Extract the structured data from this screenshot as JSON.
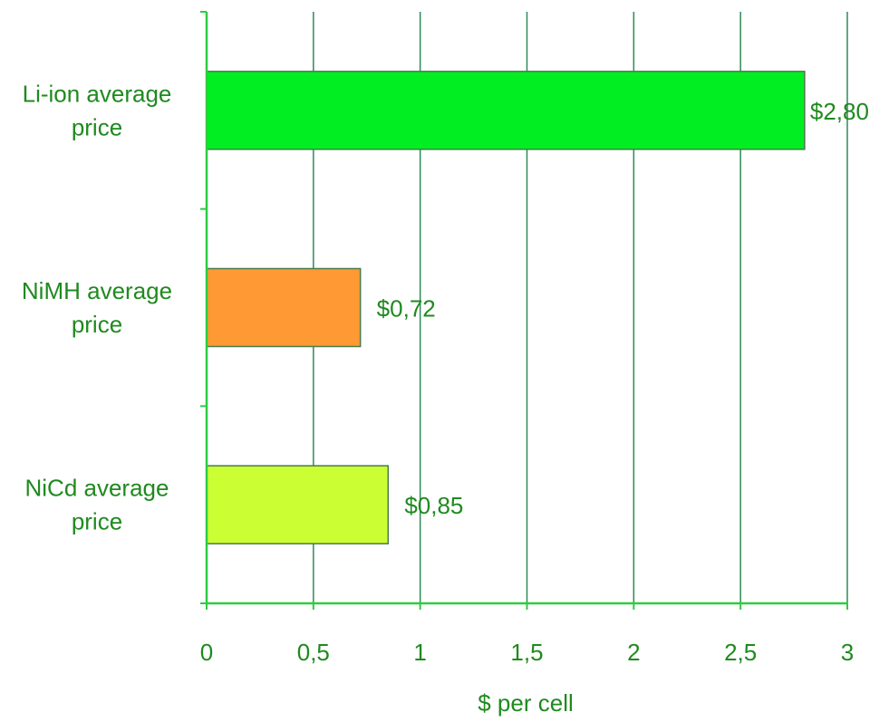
{
  "chart_data": {
    "type": "bar",
    "orientation": "horizontal",
    "title": "",
    "xlabel": "$ per cell",
    "ylabel": "",
    "xlim": [
      0,
      3
    ],
    "x_ticks": [
      "0",
      "0,5",
      "1",
      "1,5",
      "2",
      "2,5",
      "3"
    ],
    "x_tick_values": [
      0,
      0.5,
      1,
      1.5,
      2,
      2.5,
      3
    ],
    "grid": true,
    "legend": "none",
    "categories": [
      [
        "Li-ion average",
        "price"
      ],
      [
        "NiMH average",
        "price"
      ],
      [
        "NiCd average",
        "price"
      ]
    ],
    "values": [
      2.8,
      0.72,
      0.85
    ],
    "value_labels": [
      "$2,80",
      "$0,72",
      "$0,85"
    ],
    "colors": [
      "#00ee22",
      "#ff9933",
      "#ccff33"
    ],
    "text_color": "#1f8a1f",
    "grid_color": "#2e8b57",
    "axis_color": "#2ecc40",
    "bar_stroke": "#4a7a4a"
  }
}
